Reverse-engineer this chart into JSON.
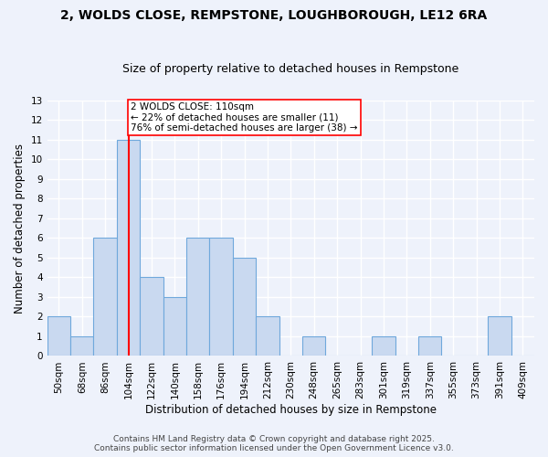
{
  "title_line1": "2, WOLDS CLOSE, REMPSTONE, LOUGHBOROUGH, LE12 6RA",
  "title_line2": "Size of property relative to detached houses in Rempstone",
  "xlabel": "Distribution of detached houses by size in Rempstone",
  "ylabel": "Number of detached properties",
  "footer_line1": "Contains HM Land Registry data © Crown copyright and database right 2025.",
  "footer_line2": "Contains public sector information licensed under the Open Government Licence v3.0.",
  "categories": [
    "50sqm",
    "68sqm",
    "86sqm",
    "104sqm",
    "122sqm",
    "140sqm",
    "158sqm",
    "176sqm",
    "194sqm",
    "212sqm",
    "230sqm",
    "248sqm",
    "265sqm",
    "283sqm",
    "301sqm",
    "319sqm",
    "337sqm",
    "355sqm",
    "373sqm",
    "391sqm",
    "409sqm"
  ],
  "values": [
    2,
    1,
    6,
    11,
    4,
    3,
    6,
    6,
    5,
    2,
    0,
    1,
    0,
    0,
    1,
    0,
    1,
    0,
    0,
    2,
    0
  ],
  "bar_color": "#c9d9f0",
  "bar_edge_color": "#6fa8dc",
  "marker_color": "red",
  "marker_bin_index": 3,
  "subject_label": "2 WOLDS CLOSE: 110sqm",
  "annotation_line1": "← 22% of detached houses are smaller (11)",
  "annotation_line2": "76% of semi-detached houses are larger (38) →",
  "annotation_box_color": "white",
  "annotation_box_edge_color": "red",
  "ylim": [
    0,
    13
  ],
  "yticks": [
    0,
    1,
    2,
    3,
    4,
    5,
    6,
    7,
    8,
    9,
    10,
    11,
    12,
    13
  ],
  "background_color": "#eef2fb",
  "grid_color": "white",
  "title_fontsize": 10,
  "subtitle_fontsize": 9,
  "axis_label_fontsize": 8.5,
  "tick_fontsize": 7.5,
  "annotation_fontsize": 7.5,
  "footer_fontsize": 6.5
}
